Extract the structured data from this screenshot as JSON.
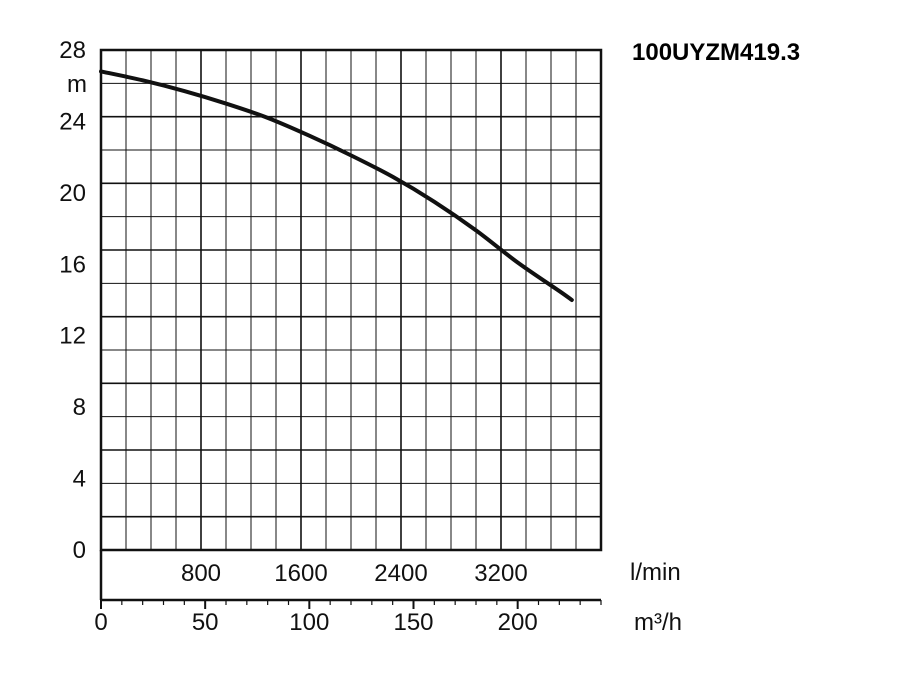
{
  "chart_data": {
    "type": "line",
    "title": "100UYZM419.3",
    "ylabel": "m",
    "y_unit": "m",
    "ylim": [
      0,
      28
    ],
    "y_ticks": [
      0,
      4,
      8,
      12,
      16,
      20,
      24,
      28
    ],
    "xlim": [
      0,
      240
    ],
    "x_ticks_primary": [
      0,
      50,
      100,
      150,
      200
    ],
    "x_unit_primary": "m³/h",
    "x_ticks_secondary": [
      800,
      1600,
      2400,
      3200
    ],
    "x_unit_secondary": "l/min",
    "grid": true,
    "series": [
      {
        "x": [
          0,
          20,
          40,
          60,
          80,
          100,
          120,
          140,
          160,
          180,
          200,
          220,
          226
        ],
        "values": [
          26.8,
          26.3,
          25.7,
          25.0,
          24.2,
          23.2,
          22.1,
          20.9,
          19.5,
          17.9,
          16.1,
          14.5,
          14.0
        ]
      }
    ]
  }
}
